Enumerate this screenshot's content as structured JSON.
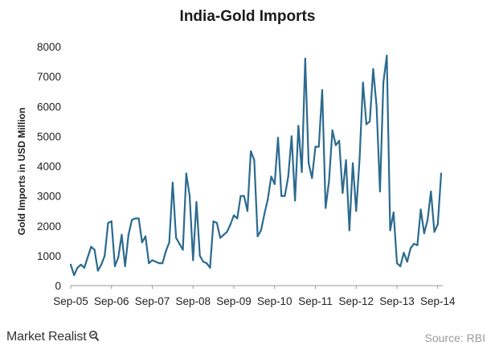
{
  "chart_data": {
    "type": "line",
    "title": "India-Gold Imports",
    "xlabel": "",
    "ylabel": "Gold Imports in USD Million",
    "ylim": [
      0,
      8000
    ],
    "yticks": [
      0,
      1000,
      2000,
      3000,
      4000,
      5000,
      6000,
      7000,
      8000
    ],
    "xtick_labels": [
      "Sep-05",
      "Sep-06",
      "Sep-07",
      "Sep-08",
      "Sep-09",
      "Sep-10",
      "Sep-11",
      "Sep-12",
      "Sep-13",
      "Sep-14"
    ],
    "grid": false,
    "legend": "none",
    "line_color": "#2b6a8f",
    "series": [
      {
        "name": "Gold Imports",
        "values": [
          700,
          350,
          600,
          700,
          600,
          950,
          1300,
          1200,
          500,
          700,
          1000,
          2100,
          2150,
          650,
          950,
          1700,
          650,
          1700,
          2200,
          2250,
          2250,
          1450,
          1650,
          750,
          850,
          800,
          750,
          750,
          1150,
          1450,
          3450,
          1600,
          1400,
          1200,
          3750,
          3000,
          850,
          2800,
          1000,
          800,
          750,
          600,
          2150,
          2100,
          1600,
          1700,
          1800,
          2050,
          2350,
          2250,
          3000,
          3000,
          2500,
          4500,
          4200,
          1650,
          1850,
          2400,
          2900,
          3650,
          3400,
          4950,
          3000,
          3000,
          3650,
          5000,
          2850,
          5350,
          3800,
          7600,
          4100,
          3600,
          4650,
          4650,
          6550,
          2600,
          3500,
          5200,
          4700,
          4850,
          3100,
          4200,
          1850,
          4100,
          2500,
          4250,
          6800,
          5400,
          5500,
          7250,
          6000,
          3150,
          6800,
          7700,
          1850,
          2450,
          750,
          650,
          1100,
          800,
          1250,
          1400,
          1350,
          2550,
          1750,
          2200,
          3150,
          1800,
          2050,
          3750
        ]
      }
    ]
  },
  "footer": {
    "brand": "Market Realist",
    "source": "Source:  RBI"
  },
  "icons": {
    "brand_mark": "magnifier-icon"
  }
}
